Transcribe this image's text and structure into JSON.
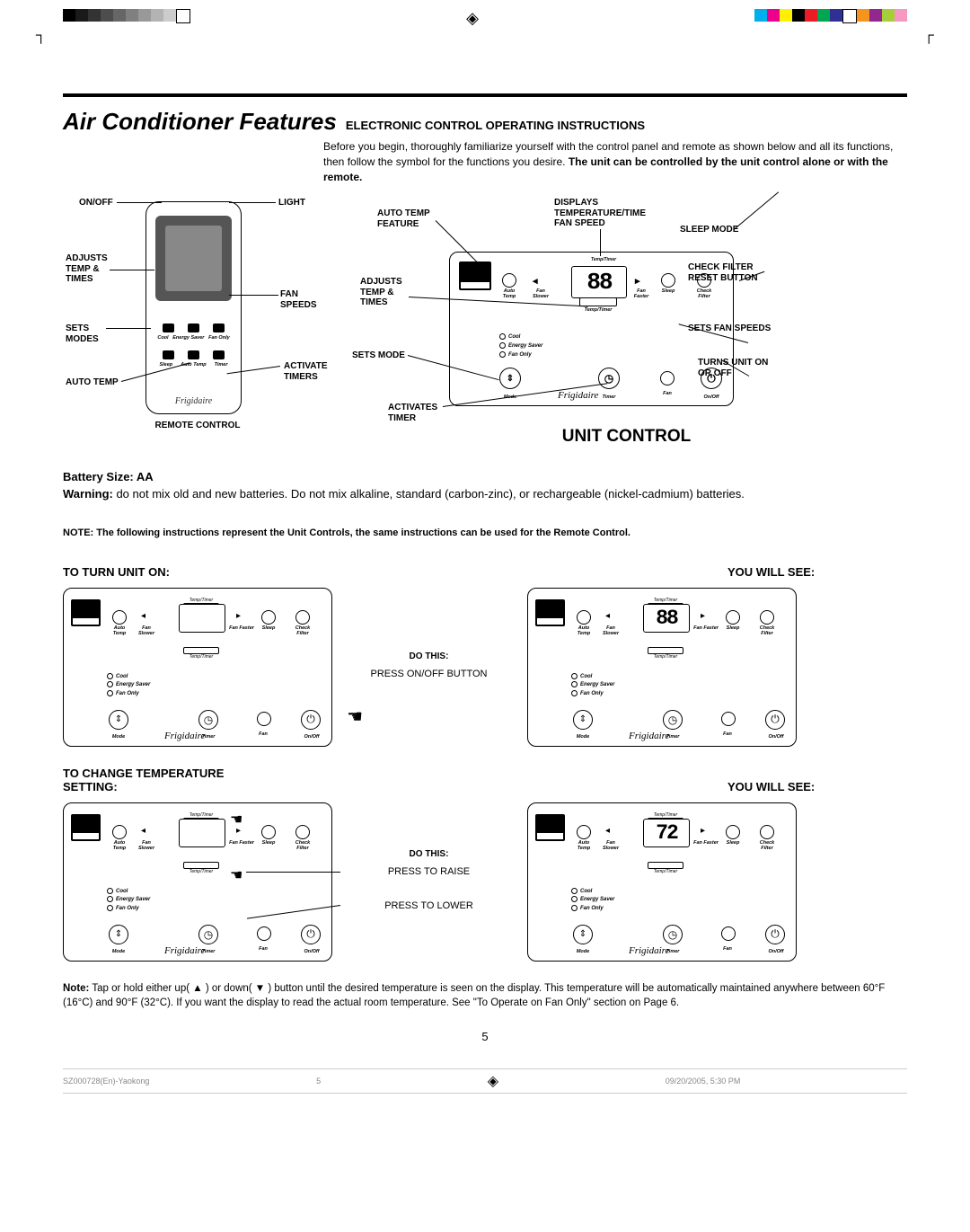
{
  "colors": {
    "gray_strip": [
      "#000000",
      "#1a1a1a",
      "#333333",
      "#4d4d4d",
      "#666666",
      "#808080",
      "#999999",
      "#b3b3b3",
      "#cccccc",
      "#ffffff"
    ],
    "color_strip": [
      "#00aeef",
      "#ec008c",
      "#fff200",
      "#000000",
      "#ed1c24",
      "#00a651",
      "#2e3192",
      "#ffffff",
      "#f7941d",
      "#92278f",
      "#a6ce39",
      "#f49ac1"
    ]
  },
  "header": {
    "main_title": "Air Conditioner Features",
    "sub_title": "ELECTRONIC CONTROL OPERATING INSTRUCTIONS",
    "intro_text": "Before you begin, thoroughly familiarize yourself with the control panel and remote as shown below and all its functions, then follow the symbol for the functions you desire. ",
    "intro_bold": "The unit can be controlled by the unit control alone or with the remote."
  },
  "remote_labels": {
    "onoff": "ON/OFF",
    "light": "LIGHT",
    "adjusts": "ADJUSTS TEMP & TIMES",
    "fan_speeds": "FAN SPEEDS",
    "sets_modes": "SETS MODES",
    "auto_temp": "AUTO TEMP",
    "activate_timers": "ACTIVATE TIMERS",
    "caption": "REMOTE CONTROL",
    "rowbtns": [
      "Cool",
      "Energy Saver",
      "Fan Only",
      "Sleep",
      "Auto Temp",
      "Timer"
    ]
  },
  "unit_labels": {
    "auto_temp_feature": "AUTO TEMP FEATURE",
    "displays": "DISPLAYS TEMPERATURE/TIME FAN SPEED",
    "sleep_mode": "SLEEP MODE",
    "check_filter": "CHECK FILTER RESET BUTTON",
    "sets_fan": "SETS FAN SPEEDS",
    "turns_unit": "TURNS UNIT ON OR OFF",
    "activates_timer": "ACTIVATES TIMER",
    "sets_mode": "SETS MODE",
    "adjusts": "ADJUSTS TEMP & TIMES",
    "title": "UNIT CONTROL",
    "display_value": "88",
    "brand": "Frigidaire",
    "temp_timer": "Temp/Timer",
    "panel_icons": {
      "auto_temp": "Auto Temp",
      "fan_slower": "Fan Slower",
      "fan_faster": "Fan Faster",
      "sleep": "Sleep",
      "check_filter": "Check Filter",
      "mode": "Mode",
      "timer": "Timer",
      "onoff": "On/Off",
      "fan": "Fan"
    },
    "indicators": [
      "Cool",
      "Energy Saver",
      "Fan Only"
    ]
  },
  "battery": {
    "title": "Battery Size: AA",
    "warning_label": "Warning:",
    "warning_text": " do not mix old and new batteries. Do not mix alkaline, standard (carbon-zinc), or rechargeable (nickel-cadmium) batteries."
  },
  "note_controls": "NOTE: The following instructions represent the Unit Controls, the same instructions can be used for the Remote Control.",
  "step1": {
    "left_heading": "TO TURN UNIT ON:",
    "right_heading": "YOU WILL SEE:",
    "do_this": "DO THIS:",
    "action": "PRESS ON/OFF BUTTON",
    "display_left": "",
    "display_right": "88"
  },
  "step2": {
    "left_heading": "TO CHANGE TEMPERATURE SETTING:",
    "right_heading": "YOU WILL SEE:",
    "do_this": "DO THIS:",
    "action1": "PRESS TO RAISE",
    "action2": "PRESS TO LOWER",
    "display_left": "",
    "display_right": "72"
  },
  "footnote": {
    "label": "Note:",
    "text": " Tap or hold either up( ▲ ) or down( ▼ ) button until the desired temperature is seen on the display. This temperature will be automatically maintained anywhere between 60°F (16°C) and 90°F (32°C). If you want the display to read the actual room temperature. See \"To Operate on Fan Only\" section on Page 6."
  },
  "page_num": "5",
  "footer": {
    "doc_id": "SZ000728(En)-Yaokong",
    "seq": "5",
    "timestamp": "09/20/2005, 5:30 PM"
  }
}
